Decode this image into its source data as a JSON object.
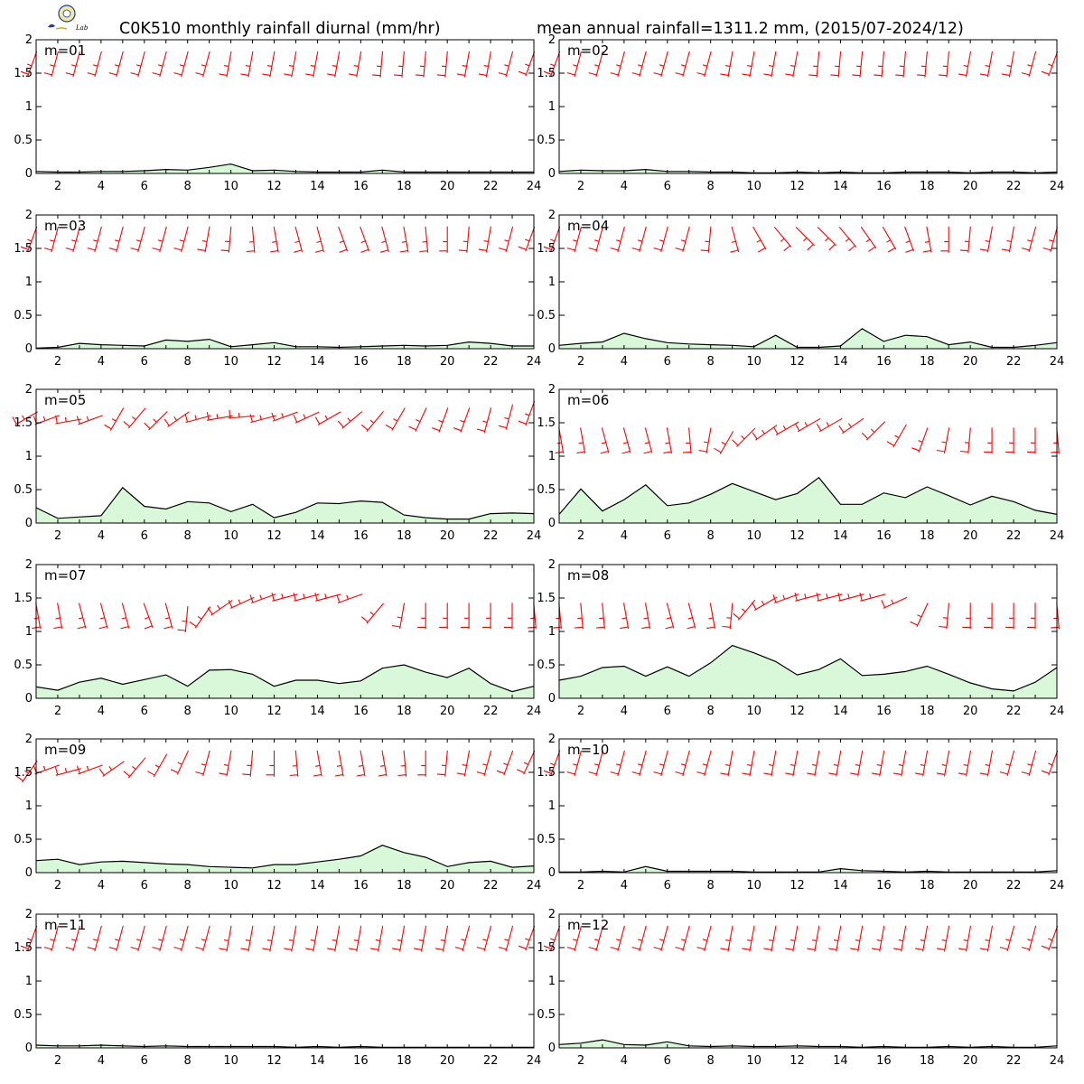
{
  "title_left": "C0K510 monthly rainfall diurnal (mm/hr)",
  "title_right": "mean annual rainfall=1311.2 mm, (2015/07-2024/12)",
  "logo": {
    "text": "Lab",
    "colors": [
      "#1a3f9c",
      "#d4b000",
      "#2a8a2a"
    ]
  },
  "colors": {
    "rain_line": "#000000",
    "rain_fill": "#d9f7d9",
    "wind": "#ff0000",
    "frame": "#000000"
  },
  "chart_data": {
    "type": "area",
    "x": [
      1,
      2,
      3,
      4,
      5,
      6,
      7,
      8,
      9,
      10,
      11,
      12,
      13,
      14,
      15,
      16,
      17,
      18,
      19,
      20,
      21,
      22,
      23,
      24
    ],
    "xlim": [
      1,
      24
    ],
    "ylim": [
      0,
      2
    ],
    "xticks": [
      "2",
      "4",
      "6",
      "8",
      "10",
      "12",
      "14",
      "16",
      "18",
      "20",
      "22",
      "24"
    ],
    "yticks": [
      "0",
      "0.5",
      "1",
      "1.5",
      "2"
    ],
    "grid": false,
    "wind_barbs": true,
    "panels": [
      {
        "label": "m=01",
        "values": [
          0.03,
          0.02,
          0.02,
          0.03,
          0.03,
          0.04,
          0.06,
          0.05,
          0.09,
          0.14,
          0.04,
          0.05,
          0.03,
          0.02,
          0.02,
          0.02,
          0.05,
          0.02,
          0.02,
          0.02,
          0.02,
          0.02,
          0.02,
          0.02
        ],
        "wind_y": [
          1.8,
          1.8,
          1.8,
          1.8,
          1.8,
          1.8,
          1.8,
          1.8,
          1.8,
          1.8,
          1.8,
          1.8,
          1.8,
          1.8,
          1.8,
          1.8,
          1.8,
          1.8,
          1.8,
          1.8,
          1.8,
          1.8,
          1.8,
          1.8
        ],
        "wind_dir": [
          200,
          195,
          195,
          195,
          195,
          195,
          195,
          195,
          195,
          190,
          190,
          190,
          190,
          190,
          190,
          190,
          185,
          185,
          185,
          185,
          190,
          190,
          195,
          200
        ]
      },
      {
        "label": "m=02",
        "values": [
          0.03,
          0.05,
          0.04,
          0.04,
          0.06,
          0.03,
          0.03,
          0.02,
          0.02,
          0.01,
          0.01,
          0.02,
          0.01,
          0.02,
          0.01,
          0.01,
          0.02,
          0.02,
          0.02,
          0.01,
          0.02,
          0.02,
          0.01,
          0.02
        ],
        "wind_y": [
          1.8,
          1.8,
          1.8,
          1.8,
          1.8,
          1.8,
          1.8,
          1.8,
          1.8,
          1.8,
          1.8,
          1.8,
          1.8,
          1.8,
          1.8,
          1.8,
          1.8,
          1.8,
          1.8,
          1.8,
          1.8,
          1.8,
          1.8,
          1.8
        ],
        "wind_dir": [
          200,
          195,
          195,
          195,
          195,
          195,
          195,
          195,
          190,
          190,
          190,
          190,
          185,
          185,
          185,
          185,
          185,
          185,
          185,
          190,
          190,
          190,
          195,
          200
        ]
      },
      {
        "label": "m=03",
        "values": [
          0.01,
          0.02,
          0.08,
          0.06,
          0.05,
          0.04,
          0.13,
          0.11,
          0.14,
          0.03,
          0.06,
          0.09,
          0.03,
          0.03,
          0.02,
          0.03,
          0.04,
          0.05,
          0.04,
          0.05,
          0.1,
          0.08,
          0.04,
          0.04
        ],
        "wind_y": [
          1.8,
          1.8,
          1.8,
          1.8,
          1.8,
          1.8,
          1.8,
          1.8,
          1.8,
          1.8,
          1.8,
          1.8,
          1.8,
          1.8,
          1.8,
          1.8,
          1.8,
          1.8,
          1.8,
          1.8,
          1.8,
          1.8,
          1.8,
          1.8
        ],
        "wind_dir": [
          200,
          195,
          195,
          195,
          195,
          195,
          195,
          195,
          190,
          185,
          175,
          170,
          165,
          165,
          160,
          160,
          165,
          170,
          175,
          180,
          185,
          190,
          195,
          200
        ]
      },
      {
        "label": "m=04",
        "values": [
          0.05,
          0.08,
          0.1,
          0.23,
          0.15,
          0.09,
          0.07,
          0.06,
          0.05,
          0.03,
          0.2,
          0.02,
          0.02,
          0.04,
          0.3,
          0.11,
          0.2,
          0.18,
          0.06,
          0.1,
          0.02,
          0.02,
          0.05,
          0.09
        ],
        "wind_y": [
          1.8,
          1.8,
          1.8,
          1.8,
          1.8,
          1.8,
          1.8,
          1.8,
          1.8,
          1.8,
          1.8,
          1.8,
          1.8,
          1.8,
          1.8,
          1.8,
          1.8,
          1.8,
          1.8,
          1.8,
          1.8,
          1.8,
          1.8,
          1.8
        ],
        "wind_dir": [
          200,
          195,
          195,
          195,
          195,
          195,
          195,
          185,
          165,
          150,
          140,
          135,
          135,
          140,
          145,
          150,
          160,
          170,
          180,
          185,
          190,
          190,
          195,
          195
        ]
      },
      {
        "label": "m=05",
        "values": [
          0.23,
          0.07,
          0.09,
          0.11,
          0.53,
          0.25,
          0.21,
          0.32,
          0.3,
          0.17,
          0.28,
          0.08,
          0.16,
          0.3,
          0.29,
          0.33,
          0.31,
          0.12,
          0.08,
          0.06,
          0.06,
          0.14,
          0.15,
          0.14
        ],
        "wind_y": [
          1.65,
          1.6,
          1.55,
          1.6,
          1.7,
          1.7,
          1.65,
          1.65,
          1.6,
          1.6,
          1.6,
          1.6,
          1.65,
          1.65,
          1.65,
          1.65,
          1.65,
          1.7,
          1.7,
          1.7,
          1.7,
          1.7,
          1.75,
          1.8
        ],
        "wind_dir": [
          240,
          250,
          260,
          250,
          210,
          220,
          225,
          235,
          255,
          260,
          265,
          255,
          250,
          245,
          240,
          230,
          220,
          210,
          205,
          200,
          200,
          195,
          195,
          200
        ]
      },
      {
        "label": "m=06",
        "values": [
          0.13,
          0.51,
          0.18,
          0.35,
          0.57,
          0.26,
          0.3,
          0.43,
          0.59,
          0.47,
          0.35,
          0.44,
          0.68,
          0.28,
          0.28,
          0.45,
          0.38,
          0.54,
          0.41,
          0.27,
          0.4,
          0.32,
          0.19,
          0.13
        ],
        "wind_y": [
          1.4,
          1.4,
          1.4,
          1.4,
          1.4,
          1.4,
          1.4,
          1.4,
          1.35,
          1.4,
          1.45,
          1.5,
          1.55,
          1.55,
          1.55,
          1.5,
          1.45,
          1.4,
          1.4,
          1.4,
          1.4,
          1.4,
          1.4,
          1.4
        ],
        "wind_dir": [
          170,
          170,
          165,
          165,
          165,
          170,
          175,
          190,
          210,
          225,
          235,
          240,
          240,
          240,
          235,
          225,
          210,
          200,
          190,
          185,
          180,
          180,
          180,
          175
        ]
      },
      {
        "label": "m=07",
        "values": [
          0.17,
          0.12,
          0.24,
          0.3,
          0.21,
          0.28,
          0.35,
          0.18,
          0.42,
          0.43,
          0.36,
          0.18,
          0.27,
          0.27,
          0.22,
          0.26,
          0.45,
          0.5,
          0.39,
          0.31,
          0.45,
          0.22,
          0.1,
          0.18
        ],
        "wind_y": [
          1.4,
          1.4,
          1.4,
          1.4,
          1.4,
          1.4,
          1.4,
          1.35,
          1.35,
          1.45,
          1.5,
          1.55,
          1.55,
          1.55,
          1.55,
          1.55,
          1.4,
          1.4,
          1.4,
          1.4,
          1.4,
          1.4,
          1.4,
          1.4
        ],
        "wind_dir": [
          170,
          170,
          165,
          165,
          165,
          160,
          165,
          185,
          215,
          235,
          245,
          250,
          255,
          255,
          255,
          250,
          220,
          190,
          180,
          180,
          180,
          180,
          180,
          175
        ]
      },
      {
        "label": "m=08",
        "values": [
          0.27,
          0.33,
          0.46,
          0.48,
          0.33,
          0.47,
          0.33,
          0.53,
          0.79,
          0.68,
          0.55,
          0.35,
          0.43,
          0.59,
          0.34,
          0.36,
          0.4,
          0.48,
          0.36,
          0.23,
          0.14,
          0.11,
          0.24,
          0.46
        ],
        "wind_y": [
          1.4,
          1.4,
          1.4,
          1.4,
          1.4,
          1.4,
          1.4,
          1.4,
          1.4,
          1.45,
          1.5,
          1.55,
          1.55,
          1.55,
          1.55,
          1.55,
          1.5,
          1.4,
          1.4,
          1.4,
          1.4,
          1.4,
          1.4,
          1.4
        ],
        "wind_dir": [
          175,
          175,
          175,
          170,
          170,
          165,
          165,
          170,
          185,
          220,
          240,
          250,
          255,
          255,
          255,
          255,
          245,
          205,
          185,
          180,
          180,
          180,
          180,
          175
        ]
      },
      {
        "label": "m=09",
        "values": [
          0.18,
          0.2,
          0.12,
          0.16,
          0.17,
          0.15,
          0.13,
          0.12,
          0.09,
          0.08,
          0.07,
          0.12,
          0.12,
          0.16,
          0.2,
          0.25,
          0.41,
          0.3,
          0.23,
          0.09,
          0.15,
          0.17,
          0.08,
          0.1
        ],
        "wind_y": [
          1.65,
          1.6,
          1.55,
          1.6,
          1.65,
          1.7,
          1.75,
          1.8,
          1.8,
          1.8,
          1.8,
          1.8,
          1.8,
          1.8,
          1.8,
          1.8,
          1.8,
          1.8,
          1.8,
          1.8,
          1.8,
          1.8,
          1.8,
          1.8
        ],
        "wind_dir": [
          215,
          250,
          255,
          250,
          235,
          220,
          210,
          205,
          195,
          190,
          185,
          180,
          175,
          170,
          170,
          170,
          170,
          175,
          180,
          185,
          190,
          195,
          200,
          205
        ]
      },
      {
        "label": "m=10",
        "values": [
          0.01,
          0.01,
          0.02,
          0.01,
          0.09,
          0.02,
          0.02,
          0.02,
          0.02,
          0.01,
          0.01,
          0.01,
          0.01,
          0.06,
          0.03,
          0.02,
          0.01,
          0.02,
          0.01,
          0.01,
          0.01,
          0.01,
          0.01,
          0.03
        ],
        "wind_y": [
          1.8,
          1.8,
          1.8,
          1.8,
          1.8,
          1.8,
          1.8,
          1.8,
          1.8,
          1.8,
          1.8,
          1.8,
          1.8,
          1.8,
          1.8,
          1.8,
          1.8,
          1.8,
          1.8,
          1.8,
          1.8,
          1.8,
          1.8,
          1.8
        ],
        "wind_dir": [
          200,
          195,
          195,
          195,
          195,
          195,
          195,
          195,
          190,
          190,
          190,
          190,
          190,
          190,
          190,
          190,
          190,
          190,
          190,
          190,
          190,
          195,
          195,
          200
        ]
      },
      {
        "label": "m=11",
        "values": [
          0.04,
          0.03,
          0.03,
          0.04,
          0.03,
          0.02,
          0.03,
          0.02,
          0.02,
          0.02,
          0.02,
          0.02,
          0.01,
          0.02,
          0.01,
          0.02,
          0.01,
          0.01,
          0.01,
          0.01,
          0.01,
          0.01,
          0.01,
          0.01
        ],
        "wind_y": [
          1.8,
          1.8,
          1.8,
          1.8,
          1.8,
          1.8,
          1.8,
          1.8,
          1.8,
          1.8,
          1.8,
          1.8,
          1.8,
          1.8,
          1.8,
          1.8,
          1.8,
          1.8,
          1.8,
          1.8,
          1.8,
          1.8,
          1.8,
          1.8
        ],
        "wind_dir": [
          200,
          195,
          195,
          195,
          195,
          195,
          195,
          195,
          195,
          190,
          190,
          190,
          190,
          190,
          190,
          190,
          190,
          190,
          190,
          190,
          195,
          195,
          195,
          200
        ]
      },
      {
        "label": "m=12",
        "values": [
          0.05,
          0.07,
          0.12,
          0.05,
          0.04,
          0.09,
          0.03,
          0.02,
          0.03,
          0.02,
          0.02,
          0.03,
          0.02,
          0.02,
          0.01,
          0.02,
          0.01,
          0.01,
          0.02,
          0.01,
          0.02,
          0.01,
          0.01,
          0.03
        ],
        "wind_y": [
          1.8,
          1.8,
          1.8,
          1.8,
          1.8,
          1.8,
          1.8,
          1.8,
          1.8,
          1.8,
          1.8,
          1.8,
          1.8,
          1.8,
          1.8,
          1.8,
          1.8,
          1.8,
          1.8,
          1.8,
          1.8,
          1.8,
          1.8,
          1.8
        ],
        "wind_dir": [
          200,
          195,
          195,
          195,
          195,
          195,
          195,
          195,
          190,
          190,
          190,
          190,
          190,
          190,
          190,
          190,
          190,
          190,
          190,
          190,
          190,
          195,
          195,
          200
        ]
      }
    ]
  }
}
